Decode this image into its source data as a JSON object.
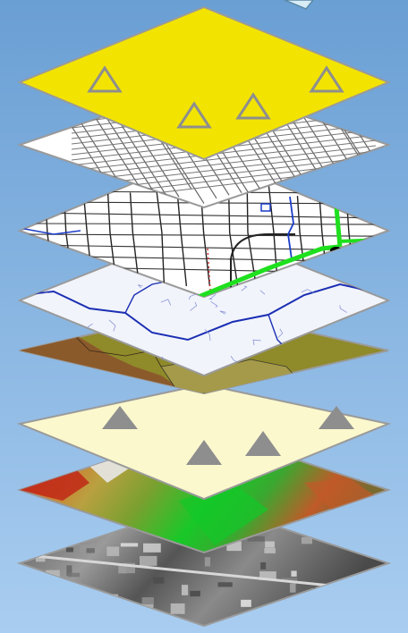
{
  "diagram": {
    "layers": [
      {
        "id": "points-top",
        "kind": "points",
        "fill": "#f2e400",
        "marker": "hollow-triangle",
        "count": 4
      },
      {
        "id": "street-network",
        "kind": "streets",
        "fill": "#ffffff"
      },
      {
        "id": "roads-and-route",
        "kind": "roads",
        "fill": "#ffffff",
        "route_color": "#1ee01e",
        "road_color": "#111111",
        "water_color": "#1a3cc8"
      },
      {
        "id": "hydrology",
        "kind": "streams",
        "fill": "#f2f4fb",
        "stream_color": "#1b2fb3"
      },
      {
        "id": "land-polygons",
        "kind": "polygons",
        "colors": [
          "#8b5a2b",
          "#a09238",
          "#a59a4a",
          "#8f8a2a"
        ]
      },
      {
        "id": "points-filled",
        "kind": "points",
        "fill": "#fbf8cd",
        "marker": "filled-triangle",
        "count": 4
      },
      {
        "id": "elevation-raster",
        "kind": "raster",
        "colors": [
          "#c02818",
          "#d86a28",
          "#e0c040",
          "#7aa030",
          "#18c828",
          "#0a8a20"
        ]
      },
      {
        "id": "aerial-imagery",
        "kind": "imagery",
        "colors": [
          "#2e2e2e",
          "#6a6a6a",
          "#a8a8a8",
          "#d8d8d8"
        ]
      }
    ],
    "edge_color": "#9a9a9a",
    "marker_color": "#8e8e8e",
    "background": [
      "#6a9fd4",
      "#a9cdf0"
    ]
  }
}
